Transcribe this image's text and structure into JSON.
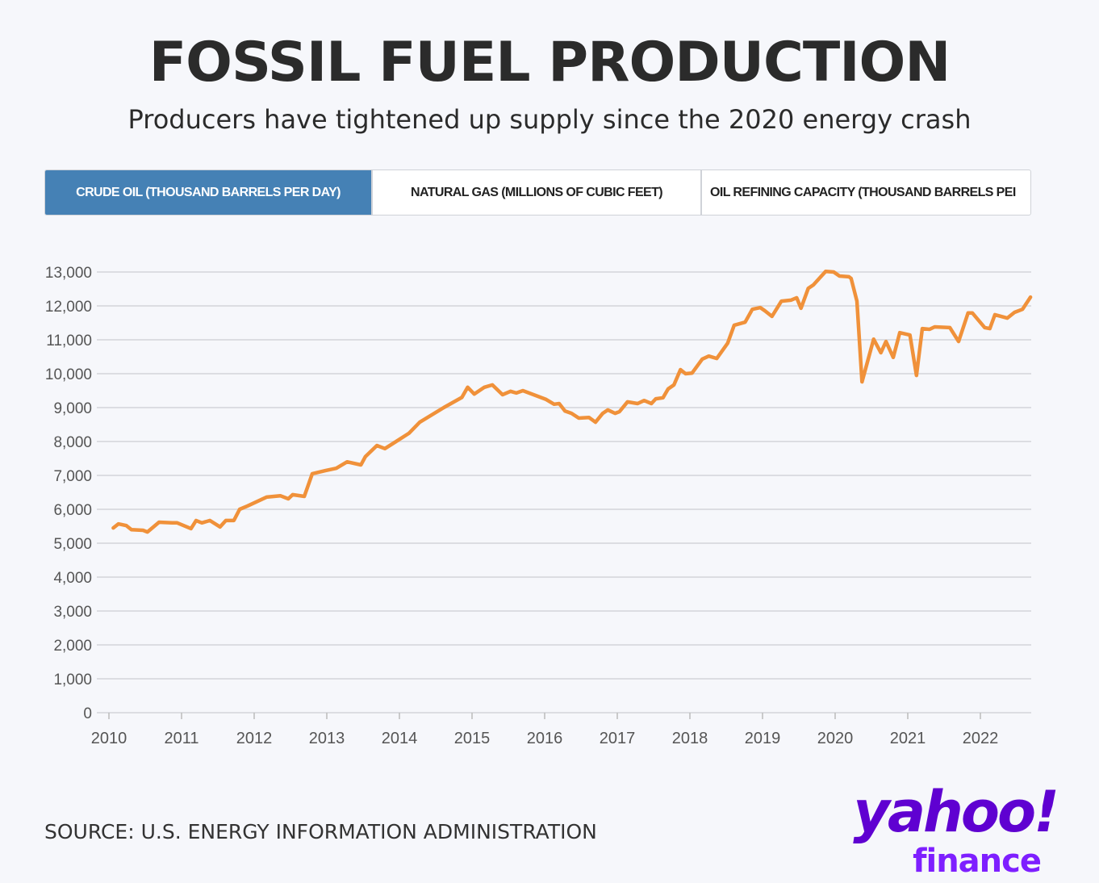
{
  "header": {
    "title": "FOSSIL FUEL PRODUCTION",
    "subtitle": "Producers have tightened up supply since the 2020 energy crash"
  },
  "tabs": [
    {
      "label": "CRUDE OIL (THOUSAND BARRELS PER DAY)",
      "active": true
    },
    {
      "label": "NATURAL GAS (MILLIONS OF CUBIC FEET)",
      "active": false
    },
    {
      "label": "OIL REFINING CAPACITY (THOUSAND BARRELS PEI",
      "active": false
    }
  ],
  "colors": {
    "line": "#f0913a",
    "active_tab": "#4581b5",
    "grid": "#dcdde2",
    "brand": "#5f01d1"
  },
  "footer": {
    "source": "SOURCE: U.S. ENERGY INFORMATION ADMINISTRATION"
  },
  "logo": {
    "line1": "yahoo!",
    "line2": "finance"
  },
  "chart_data": {
    "type": "line",
    "title": "",
    "xlabel": "",
    "ylabel": "",
    "xlim": [
      2010,
      2022.7
    ],
    "ylim": [
      0,
      13000
    ],
    "grid": true,
    "legend": "none",
    "x_ticks": [
      "2010",
      "2011",
      "2012",
      "2013",
      "2014",
      "2015",
      "2016",
      "2017",
      "2018",
      "2019",
      "2020",
      "2021",
      "2022"
    ],
    "y_ticks": [
      "0",
      "1,000",
      "2,000",
      "3,000",
      "4,000",
      "5,000",
      "6,000",
      "7,000",
      "8,000",
      "9,000",
      "10,000",
      "11,000",
      "12,000",
      "13,000"
    ],
    "series": [
      {
        "points": [
          [
            2010.06,
            5450
          ],
          [
            2010.13,
            5570
          ],
          [
            2010.24,
            5520
          ],
          [
            2010.31,
            5400
          ],
          [
            2010.47,
            5380
          ],
          [
            2010.53,
            5330
          ],
          [
            2010.69,
            5620
          ],
          [
            2010.87,
            5600
          ],
          [
            2010.94,
            5600
          ],
          [
            2011.13,
            5430
          ],
          [
            2011.2,
            5670
          ],
          [
            2011.28,
            5600
          ],
          [
            2011.39,
            5670
          ],
          [
            2011.53,
            5480
          ],
          [
            2011.61,
            5670
          ],
          [
            2011.72,
            5670
          ],
          [
            2011.8,
            6000
          ],
          [
            2011.91,
            6100
          ],
          [
            2012.17,
            6360
          ],
          [
            2012.36,
            6400
          ],
          [
            2012.47,
            6310
          ],
          [
            2012.53,
            6430
          ],
          [
            2012.69,
            6380
          ],
          [
            2012.8,
            7050
          ],
          [
            2012.98,
            7140
          ],
          [
            2013.13,
            7210
          ],
          [
            2013.28,
            7400
          ],
          [
            2013.47,
            7310
          ],
          [
            2013.53,
            7550
          ],
          [
            2013.69,
            7880
          ],
          [
            2013.8,
            7790
          ],
          [
            2013.94,
            7980
          ],
          [
            2014.13,
            8240
          ],
          [
            2014.28,
            8570
          ],
          [
            2014.61,
            9000
          ],
          [
            2014.86,
            9300
          ],
          [
            2014.94,
            9600
          ],
          [
            2015.03,
            9400
          ],
          [
            2015.17,
            9600
          ],
          [
            2015.28,
            9670
          ],
          [
            2015.42,
            9380
          ],
          [
            2015.53,
            9480
          ],
          [
            2015.61,
            9430
          ],
          [
            2015.7,
            9500
          ],
          [
            2016.02,
            9240
          ],
          [
            2016.13,
            9100
          ],
          [
            2016.2,
            9120
          ],
          [
            2016.28,
            8900
          ],
          [
            2016.37,
            8830
          ],
          [
            2016.47,
            8690
          ],
          [
            2016.61,
            8710
          ],
          [
            2016.7,
            8570
          ],
          [
            2016.8,
            8830
          ],
          [
            2016.87,
            8930
          ],
          [
            2016.97,
            8830
          ],
          [
            2017.03,
            8880
          ],
          [
            2017.14,
            9170
          ],
          [
            2017.28,
            9120
          ],
          [
            2017.37,
            9210
          ],
          [
            2017.47,
            9120
          ],
          [
            2017.53,
            9260
          ],
          [
            2017.63,
            9290
          ],
          [
            2017.7,
            9550
          ],
          [
            2017.78,
            9670
          ],
          [
            2017.87,
            10120
          ],
          [
            2017.94,
            10000
          ],
          [
            2018.03,
            10020
          ],
          [
            2018.17,
            10430
          ],
          [
            2018.26,
            10520
          ],
          [
            2018.37,
            10450
          ],
          [
            2018.52,
            10900
          ],
          [
            2018.61,
            11430
          ],
          [
            2018.76,
            11520
          ],
          [
            2018.86,
            11900
          ],
          [
            2018.97,
            11950
          ],
          [
            2019.03,
            11860
          ],
          [
            2019.13,
            11690
          ],
          [
            2019.26,
            12140
          ],
          [
            2019.39,
            12170
          ],
          [
            2019.47,
            12240
          ],
          [
            2019.53,
            11930
          ],
          [
            2019.63,
            12520
          ],
          [
            2019.7,
            12620
          ],
          [
            2019.87,
            13020
          ],
          [
            2019.98,
            13000
          ],
          [
            2020.06,
            12880
          ],
          [
            2020.19,
            12860
          ],
          [
            2020.22,
            12810
          ],
          [
            2020.3,
            12140
          ],
          [
            2020.37,
            9760
          ],
          [
            2020.44,
            10310
          ],
          [
            2020.53,
            11020
          ],
          [
            2020.63,
            10620
          ],
          [
            2020.7,
            10950
          ],
          [
            2020.8,
            10480
          ],
          [
            2020.89,
            11210
          ],
          [
            2021.03,
            11140
          ],
          [
            2021.12,
            9950
          ],
          [
            2021.2,
            11330
          ],
          [
            2021.3,
            11310
          ],
          [
            2021.37,
            11380
          ],
          [
            2021.58,
            11360
          ],
          [
            2021.7,
            10950
          ],
          [
            2021.83,
            11790
          ],
          [
            2021.89,
            11790
          ],
          [
            2022.06,
            11360
          ],
          [
            2022.13,
            11330
          ],
          [
            2022.2,
            11740
          ],
          [
            2022.37,
            11640
          ],
          [
            2022.47,
            11810
          ],
          [
            2022.58,
            11900
          ],
          [
            2022.69,
            12260
          ]
        ]
      }
    ]
  }
}
